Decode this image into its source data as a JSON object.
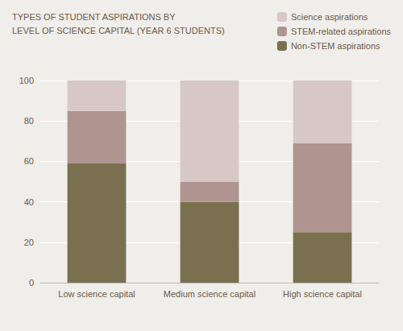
{
  "chart_data": {
    "type": "bar",
    "title": "TYPES OF STUDENT ASPIRATIONS BY",
    "subtitle": "LEVEL OF SCIENCE CAPITAL (YEAR 6 STUDENTS)",
    "categories": [
      "Low science capital",
      "Medium science capital",
      "High science capital"
    ],
    "series": [
      {
        "name": "Non-STEM aspirations",
        "color": "#7a7050",
        "values": [
          59,
          40,
          25
        ]
      },
      {
        "name": "STEM-related aspirations",
        "color": "#b09490",
        "values": [
          26,
          10,
          44
        ]
      },
      {
        "name": "Science aspirations",
        "color": "#d8c8c5",
        "values": [
          15,
          50,
          31
        ]
      }
    ],
    "stacked": true,
    "ylim": [
      0,
      100
    ],
    "yticks": [
      0,
      20,
      40,
      60,
      80,
      100
    ],
    "grid": true,
    "legend": "upper right"
  }
}
